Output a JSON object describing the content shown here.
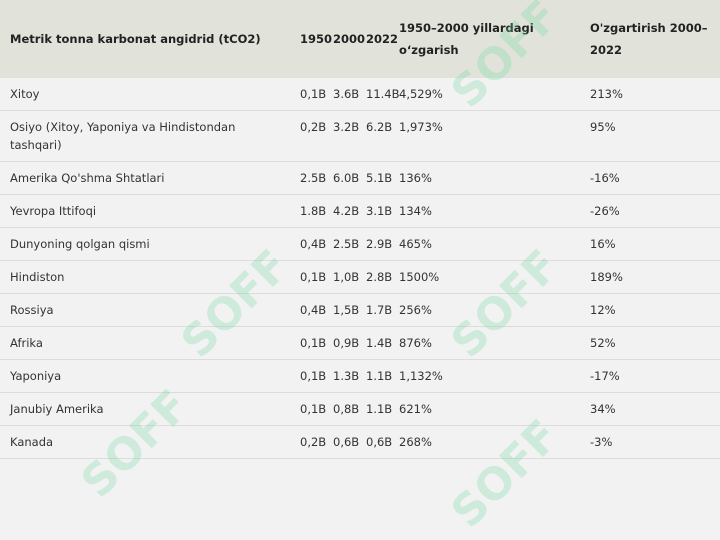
{
  "table": {
    "header": [
      "Metrik tonna karbonat angidrid (tCO2)",
      "1950",
      "2000",
      "2022",
      "1950–2000 yillardagi o‘zgarish",
      "O'zgartirish 2000–2022"
    ],
    "rows": [
      [
        "Xitoy",
        "0,1B",
        "3.6B",
        "11.4B",
        "4,529%",
        "213%"
      ],
      [
        "Osiyo (Xitoy, Yaponiya va Hindistondan tashqari)",
        "0,2B",
        "3.2B",
        "6.2B",
        "1,973%",
        "95%"
      ],
      [
        "Amerika Qo'shma Shtatlari",
        "2.5B",
        "6.0B",
        "5.1B",
        "136%",
        "-16%"
      ],
      [
        "Yevropa Ittifoqi",
        "1.8B",
        "4.2B",
        "3.1B",
        "134%",
        "-26%"
      ],
      [
        "Dunyoning qolgan qismi",
        "0,4B",
        "2.5B",
        "2.9B",
        "465%",
        "16%"
      ],
      [
        "Hindiston",
        "0,1B",
        "1,0B",
        "2.8B",
        "1500%",
        "189%"
      ],
      [
        "Rossiya",
        "0,4B",
        "1,5B",
        "1.7B",
        "256%",
        "12%"
      ],
      [
        "Afrika",
        "0,1B",
        "0,9B",
        "1.4B",
        "876%",
        "52%"
      ],
      [
        "Yaponiya",
        "0,1B",
        "1.3B",
        "1.1B",
        "1,132%",
        "-17%"
      ],
      [
        "Janubiy Amerika",
        "0,1B",
        "0,8B",
        "1.1B",
        "621%",
        "34%"
      ],
      [
        "Kanada",
        "0,2B",
        "0,6B",
        "0,6B",
        "268%",
        "-3%"
      ]
    ]
  },
  "watermark": "SOFF"
}
